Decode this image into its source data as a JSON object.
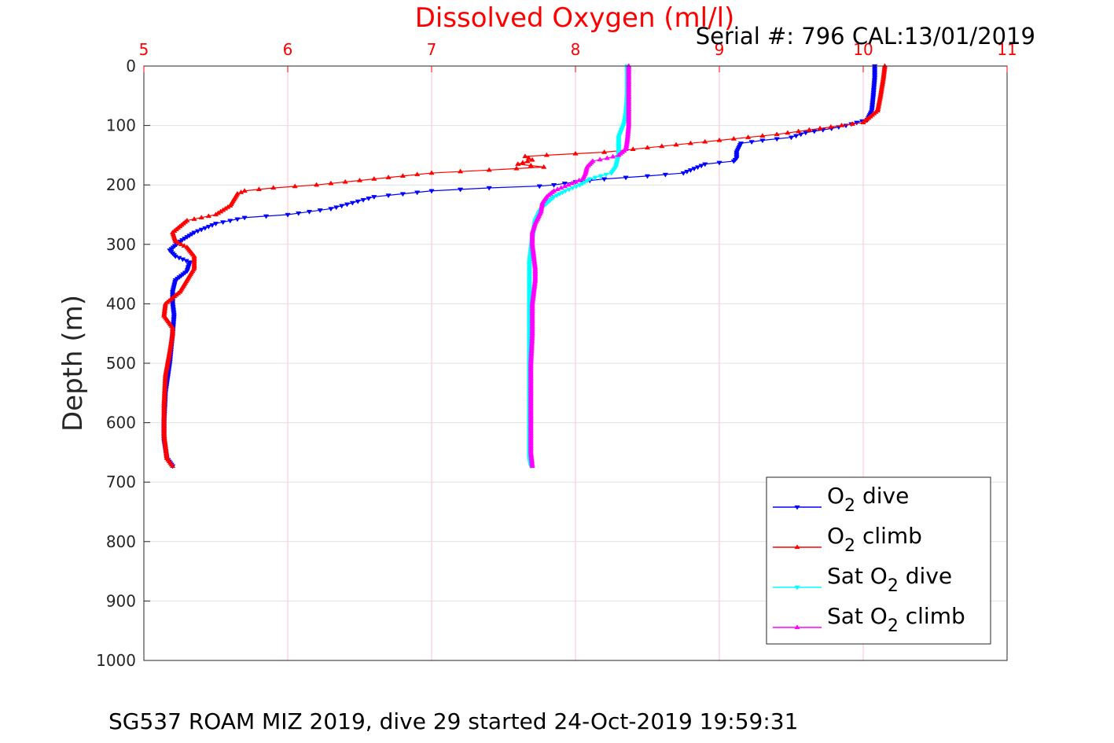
{
  "chart_data": {
    "type": "line",
    "title": "Dissolved Oxygen (ml/l)",
    "title_color": "#ff0000",
    "subtitle": "Serial #: 796  CAL:13/01/2019",
    "ylabel": "Depth (m)",
    "footer": "SG537 ROAM MIZ 2019, dive 29 started 24-Oct-2019 19:59:31",
    "xlim": [
      5,
      11
    ],
    "ylim": [
      0,
      1000
    ],
    "y_reversed": true,
    "x_axis_location": "top",
    "x_tick_color": "#ff0000",
    "grid_color": "#ffc0cb",
    "grid": true,
    "legend_location": "lower-right",
    "xticks": [
      {
        "value": 5,
        "label": "5"
      },
      {
        "value": 6,
        "label": "6"
      },
      {
        "value": 7,
        "label": "7"
      },
      {
        "value": 8,
        "label": "8"
      },
      {
        "value": 9,
        "label": "9"
      },
      {
        "value": 10,
        "label": "10"
      },
      {
        "value": 11,
        "label": "11"
      }
    ],
    "yticks": [
      {
        "value": 0,
        "label": "0"
      },
      {
        "value": 100,
        "label": "100"
      },
      {
        "value": 200,
        "label": "200"
      },
      {
        "value": 300,
        "label": "300"
      },
      {
        "value": 400,
        "label": "400"
      },
      {
        "value": 500,
        "label": "500"
      },
      {
        "value": 600,
        "label": "600"
      },
      {
        "value": 700,
        "label": "700"
      },
      {
        "value": 800,
        "label": "800"
      },
      {
        "value": 900,
        "label": "900"
      },
      {
        "value": 1000,
        "label": "1000"
      }
    ],
    "series": [
      {
        "label_prefix": "O",
        "label_sub": "2",
        "label_suffix": " dive",
        "color": "#0000ff",
        "marker": "triangle-down",
        "x": [
          10.08,
          10.08,
          10.07,
          10.06,
          10.03,
          9.88,
          9.78,
          9.6,
          9.5,
          9.3,
          9.15,
          9.12,
          9.12,
          9.1,
          8.9,
          8.75,
          8.5,
          8.2,
          8.0,
          7.85,
          7.75,
          7.4,
          7.0,
          6.6,
          6.45,
          6.3,
          6.0,
          5.7,
          5.5,
          5.35,
          5.25,
          5.18,
          5.22,
          5.32,
          5.3,
          5.22,
          5.2,
          5.2,
          5.21,
          5.2,
          5.18,
          5.15,
          5.14,
          5.14,
          5.16,
          5.2
        ],
        "y": [
          0,
          20,
          50,
          75,
          90,
          100,
          105,
          112,
          120,
          125,
          130,
          145,
          155,
          160,
          165,
          180,
          185,
          190,
          195,
          200,
          202,
          205,
          210,
          220,
          230,
          240,
          250,
          255,
          265,
          280,
          295,
          310,
          320,
          330,
          345,
          360,
          380,
          400,
          420,
          450,
          500,
          550,
          600,
          630,
          660,
          673
        ]
      },
      {
        "label_prefix": "O",
        "label_sub": "2",
        "label_suffix": " climb",
        "color": "#ff0000",
        "marker": "triangle-up",
        "x": [
          10.15,
          10.14,
          10.12,
          10.1,
          10.0,
          9.7,
          9.4,
          9.0,
          8.6,
          8.2,
          7.8,
          7.65,
          7.7,
          7.6,
          7.78,
          7.4,
          7.0,
          6.8,
          6.6,
          6.2,
          5.9,
          5.7,
          5.65,
          5.6,
          5.5,
          5.3,
          5.2,
          5.22,
          5.3,
          5.35,
          5.35,
          5.3,
          5.25,
          5.2,
          5.15,
          5.14,
          5.2,
          5.2,
          5.18,
          5.15,
          5.14,
          5.14,
          5.16,
          5.2
        ],
        "y": [
          0,
          20,
          50,
          75,
          95,
          105,
          115,
          125,
          135,
          145,
          150,
          152,
          158,
          165,
          170,
          175,
          180,
          185,
          190,
          200,
          205,
          210,
          215,
          235,
          250,
          260,
          280,
          295,
          305,
          320,
          340,
          360,
          380,
          390,
          400,
          420,
          440,
          450,
          480,
          520,
          570,
          620,
          660,
          673
        ]
      },
      {
        "label_prefix": "Sat O",
        "label_sub": "2",
        "label_suffix": " dive",
        "color": "#00ffff",
        "marker": "triangle-down",
        "x": [
          8.36,
          8.36,
          8.35,
          8.34,
          8.3,
          8.3,
          8.28,
          8.25,
          8.1,
          8.03,
          7.93,
          7.85,
          7.78,
          7.75,
          7.72,
          7.71,
          7.7,
          7.69,
          7.68,
          7.68,
          7.68,
          7.68,
          7.68,
          7.68,
          7.68,
          7.68,
          7.68,
          7.69
        ],
        "y": [
          0,
          50,
          80,
          95,
          120,
          150,
          170,
          180,
          190,
          200,
          210,
          220,
          235,
          245,
          260,
          275,
          290,
          310,
          330,
          350,
          400,
          450,
          500,
          550,
          600,
          640,
          660,
          673
        ]
      },
      {
        "label_prefix": "Sat O",
        "label_sub": "2",
        "label_suffix": " climb",
        "color": "#ff00ff",
        "marker": "triangle-up",
        "x": [
          8.37,
          8.37,
          8.37,
          8.36,
          8.35,
          8.3,
          8.22,
          8.12,
          8.08,
          8.07,
          8.05,
          7.95,
          7.85,
          7.8,
          7.77,
          7.76,
          7.72,
          7.7,
          7.7,
          7.71,
          7.72,
          7.72,
          7.71,
          7.7,
          7.7,
          7.69,
          7.69,
          7.69,
          7.69,
          7.7
        ],
        "y": [
          0,
          50,
          100,
          125,
          140,
          150,
          155,
          160,
          170,
          180,
          190,
          200,
          210,
          220,
          230,
          245,
          265,
          280,
          300,
          320,
          340,
          360,
          380,
          400,
          450,
          500,
          550,
          600,
          650,
          673
        ]
      }
    ]
  }
}
